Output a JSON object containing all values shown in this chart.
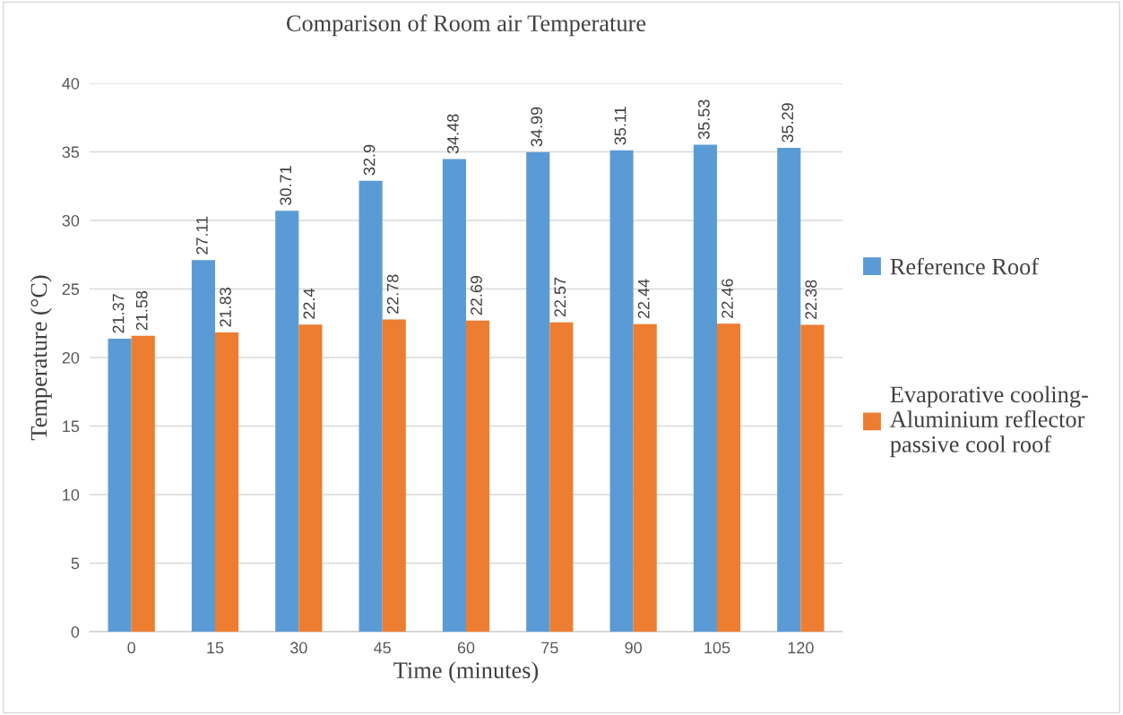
{
  "chart_data": {
    "type": "bar",
    "title": "Comparison of Room air Temperature",
    "xlabel": "Time (minutes)",
    "ylabel": "Temperature (°C)",
    "categories": [
      "0",
      "15",
      "30",
      "45",
      "60",
      "75",
      "90",
      "105",
      "120"
    ],
    "series": [
      {
        "name": "Reference Roof",
        "color": "#5b9bd5",
        "values": [
          21.37,
          27.11,
          30.71,
          32.9,
          34.48,
          34.99,
          35.11,
          35.53,
          35.29
        ]
      },
      {
        "name": "Evaporative cooling-\nAluminium reflector\npassive cool roof",
        "color": "#ed7d31",
        "values": [
          21.58,
          21.83,
          22.4,
          22.78,
          22.69,
          22.57,
          22.44,
          22.46,
          22.38
        ]
      }
    ],
    "ylim": [
      0,
      40
    ],
    "yticks": [
      0,
      5,
      10,
      15,
      20,
      25,
      30,
      35,
      40
    ],
    "grid": "y",
    "legend": "right",
    "data_labels": true
  }
}
